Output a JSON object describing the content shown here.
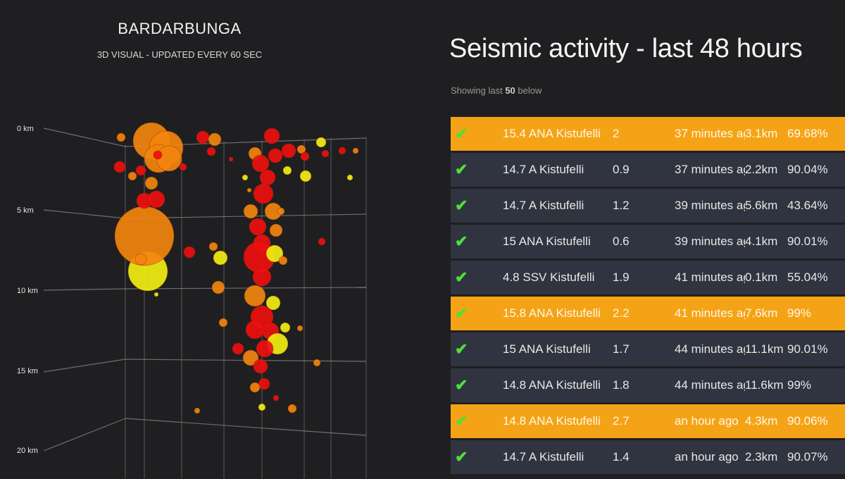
{
  "viz": {
    "title": "BARDARBUNGA",
    "subtitle": "3D VISUAL - UPDATED EVERY 60 SEC",
    "depth_labels": [
      "0 km",
      "5 km",
      "10 km",
      "15 km",
      "20 km"
    ]
  },
  "feed": {
    "title": "Seismic activity - last 48 hours",
    "showing_prefix": "Showing last ",
    "showing_count": "50",
    "showing_suffix": " below",
    "rows": [
      {
        "check": "✔",
        "desc": "15.4 ANA Kistufelli",
        "mag": "2",
        "time": "37 minutes ago",
        "dist": "3.1km",
        "quality": "69.68%",
        "highlight": true
      },
      {
        "check": "✔",
        "desc": "14.7 A Kistufelli",
        "mag": "0.9",
        "time": "37 minutes ago",
        "dist": "2.2km",
        "quality": "90.04%",
        "highlight": false
      },
      {
        "check": "✔",
        "desc": "14.7 A Kistufelli",
        "mag": "1.2",
        "time": "39 minutes ago",
        "dist": "5.6km",
        "quality": "43.64%",
        "highlight": false
      },
      {
        "check": "✔",
        "desc": "15 ANA Kistufelli",
        "mag": "0.6",
        "time": "39 minutes ago",
        "dist": "4.1km",
        "quality": "90.01%",
        "highlight": false
      },
      {
        "check": "✔",
        "desc": "4.8 SSV Kistufelli",
        "mag": "1.9",
        "time": "41 minutes ago",
        "dist": "0.1km",
        "quality": "55.04%",
        "highlight": false
      },
      {
        "check": "✔",
        "desc": "15.8 ANA Kistufelli",
        "mag": "2.2",
        "time": "41 minutes ago",
        "dist": "7.6km",
        "quality": "99%",
        "highlight": true
      },
      {
        "check": "✔",
        "desc": "15 ANA Kistufelli",
        "mag": "1.7",
        "time": "44 minutes ago",
        "dist": "11.1km",
        "quality": "90.01%",
        "highlight": false
      },
      {
        "check": "✔",
        "desc": "14.8 ANA Kistufelli",
        "mag": "1.8",
        "time": "44 minutes ago",
        "dist": "11.6km",
        "quality": "99%",
        "highlight": false
      },
      {
        "check": "✔",
        "desc": "14.8 ANA Kistufelli",
        "mag": "2.7",
        "time": "an hour ago",
        "dist": "4.3km",
        "quality": "90.06%",
        "highlight": true
      },
      {
        "check": "✔",
        "desc": "14.7 A Kistufelli",
        "mag": "1.4",
        "time": "an hour ago",
        "dist": "2.3km",
        "quality": "90.07%",
        "highlight": false
      }
    ]
  },
  "colors": {
    "background": "#1f1f21",
    "row": "#303440",
    "highlight_row": "#f5a316",
    "check": "#4ee03a",
    "quake_red": "#ee0f0f",
    "quake_orange": "#f2840e",
    "quake_yellow": "#f2ee12"
  }
}
